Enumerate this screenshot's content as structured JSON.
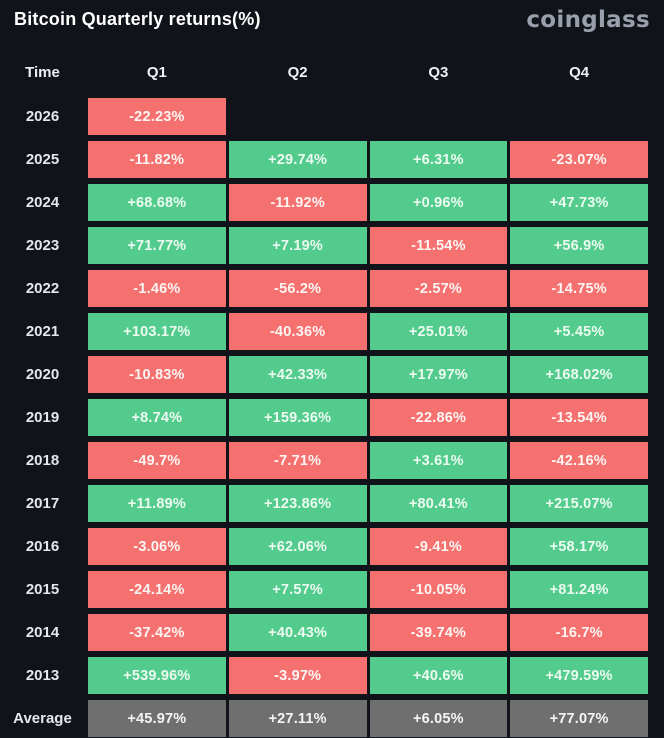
{
  "header": {
    "title": "Bitcoin Quarterly returns(%)",
    "logo": "coinglass"
  },
  "colors": {
    "background": "#11131b",
    "positive": "#53cb8c",
    "negative": "#f4716f",
    "average": "#6f6f6f",
    "logo": "#9aa0ab"
  },
  "table": {
    "columns": [
      "Time",
      "Q1",
      "Q2",
      "Q3",
      "Q4"
    ],
    "rows": [
      {
        "label": "2026",
        "type": "year",
        "values": [
          "-22.23%",
          null,
          null,
          null
        ]
      },
      {
        "label": "2025",
        "type": "year",
        "values": [
          "-11.82%",
          "+29.74%",
          "+6.31%",
          "-23.07%"
        ]
      },
      {
        "label": "2024",
        "type": "year",
        "values": [
          "+68.68%",
          "-11.92%",
          "+0.96%",
          "+47.73%"
        ]
      },
      {
        "label": "2023",
        "type": "year",
        "values": [
          "+71.77%",
          "+7.19%",
          "-11.54%",
          "+56.9%"
        ]
      },
      {
        "label": "2022",
        "type": "year",
        "values": [
          "-1.46%",
          "-56.2%",
          "-2.57%",
          "-14.75%"
        ]
      },
      {
        "label": "2021",
        "type": "year",
        "values": [
          "+103.17%",
          "-40.36%",
          "+25.01%",
          "+5.45%"
        ]
      },
      {
        "label": "2020",
        "type": "year",
        "values": [
          "-10.83%",
          "+42.33%",
          "+17.97%",
          "+168.02%"
        ]
      },
      {
        "label": "2019",
        "type": "year",
        "values": [
          "+8.74%",
          "+159.36%",
          "-22.86%",
          "-13.54%"
        ]
      },
      {
        "label": "2018",
        "type": "year",
        "values": [
          "-49.7%",
          "-7.71%",
          "+3.61%",
          "-42.16%"
        ]
      },
      {
        "label": "2017",
        "type": "year",
        "values": [
          "+11.89%",
          "+123.86%",
          "+80.41%",
          "+215.07%"
        ]
      },
      {
        "label": "2016",
        "type": "year",
        "values": [
          "-3.06%",
          "+62.06%",
          "-9.41%",
          "+58.17%"
        ]
      },
      {
        "label": "2015",
        "type": "year",
        "values": [
          "-24.14%",
          "+7.57%",
          "-10.05%",
          "+81.24%"
        ]
      },
      {
        "label": "2014",
        "type": "year",
        "values": [
          "-37.42%",
          "+40.43%",
          "-39.74%",
          "-16.7%"
        ]
      },
      {
        "label": "2013",
        "type": "year",
        "values": [
          "+539.96%",
          "-3.97%",
          "+40.6%",
          "+479.59%"
        ]
      },
      {
        "label": "Average",
        "type": "average",
        "values": [
          "+45.97%",
          "+27.11%",
          "+6.05%",
          "+77.07%"
        ]
      }
    ]
  },
  "chart_data": {
    "type": "heatmap",
    "title": "Bitcoin Quarterly returns(%)",
    "unit": "%",
    "x_categories": [
      "Q1",
      "Q2",
      "Q3",
      "Q4"
    ],
    "y_categories": [
      "2026",
      "2025",
      "2024",
      "2023",
      "2022",
      "2021",
      "2020",
      "2019",
      "2018",
      "2017",
      "2016",
      "2015",
      "2014",
      "2013",
      "Average"
    ],
    "series": [
      {
        "name": "2026",
        "values": [
          -22.23,
          null,
          null,
          null
        ]
      },
      {
        "name": "2025",
        "values": [
          -11.82,
          29.74,
          6.31,
          -23.07
        ]
      },
      {
        "name": "2024",
        "values": [
          68.68,
          -11.92,
          0.96,
          47.73
        ]
      },
      {
        "name": "2023",
        "values": [
          71.77,
          7.19,
          -11.54,
          56.9
        ]
      },
      {
        "name": "2022",
        "values": [
          -1.46,
          -56.2,
          -2.57,
          -14.75
        ]
      },
      {
        "name": "2021",
        "values": [
          103.17,
          -40.36,
          25.01,
          5.45
        ]
      },
      {
        "name": "2020",
        "values": [
          -10.83,
          42.33,
          17.97,
          168.02
        ]
      },
      {
        "name": "2019",
        "values": [
          8.74,
          159.36,
          -22.86,
          -13.54
        ]
      },
      {
        "name": "2018",
        "values": [
          -49.7,
          -7.71,
          3.61,
          -42.16
        ]
      },
      {
        "name": "2017",
        "values": [
          11.89,
          123.86,
          80.41,
          215.07
        ]
      },
      {
        "name": "2016",
        "values": [
          -3.06,
          62.06,
          -9.41,
          58.17
        ]
      },
      {
        "name": "2015",
        "values": [
          -24.14,
          7.57,
          -10.05,
          81.24
        ]
      },
      {
        "name": "2014",
        "values": [
          -37.42,
          40.43,
          -39.74,
          -16.7
        ]
      },
      {
        "name": "2013",
        "values": [
          539.96,
          -3.97,
          40.6,
          479.59
        ]
      },
      {
        "name": "Average",
        "values": [
          45.97,
          27.11,
          6.05,
          77.07
        ]
      }
    ],
    "color_rule": "positive=green, negative=red, average-row=gray",
    "legend": "none",
    "grid": "cell gaps on dark background"
  }
}
